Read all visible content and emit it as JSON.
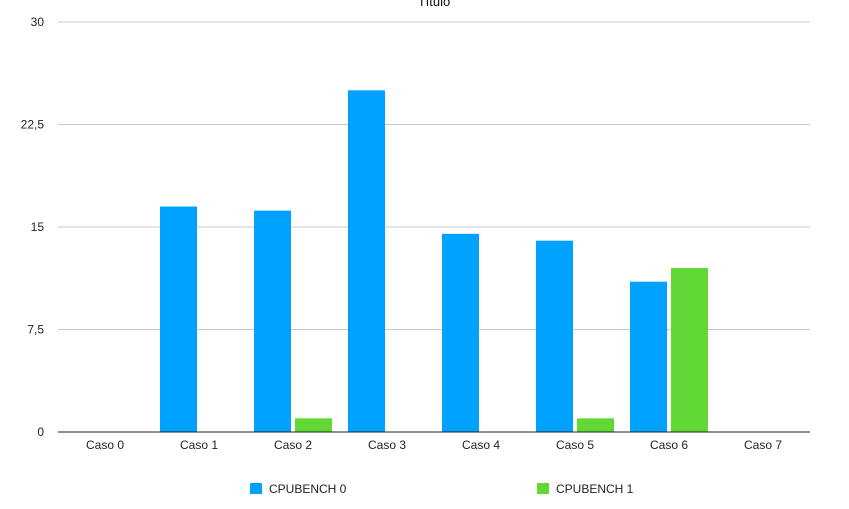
{
  "chart_data": {
    "type": "bar",
    "title": "Título",
    "xlabel": "",
    "ylabel": "",
    "categories": [
      "Caso 0",
      "Caso 1",
      "Caso 2",
      "Caso 3",
      "Caso 4",
      "Caso 5",
      "Caso 6",
      "Caso 7"
    ],
    "series": [
      {
        "name": "CPUBENCH 0",
        "color": "#00a2ff",
        "values": [
          0,
          16.5,
          16.2,
          25,
          14.5,
          14,
          11,
          0
        ]
      },
      {
        "name": "CPUBENCH 1",
        "color": "#61d836",
        "values": [
          0,
          0,
          1,
          0,
          0,
          1,
          12,
          0
        ]
      }
    ],
    "ylim": [
      0,
      30
    ],
    "yticks": [
      "0",
      "7,5",
      "15",
      "22,5",
      "30"
    ],
    "ytick_values": [
      0,
      7.5,
      15,
      22.5,
      30
    ],
    "grid": true,
    "legend_position": "bottom"
  }
}
